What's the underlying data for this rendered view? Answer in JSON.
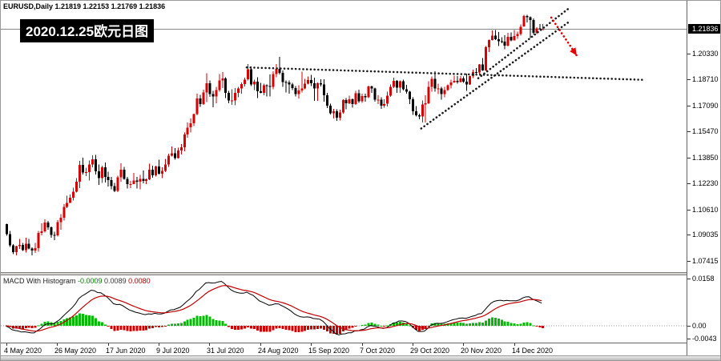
{
  "header": {
    "symbol_info": "EURUSD,Daily 1.21819 1.22153 1.21769 1.21836",
    "title_overlay": "2020.12.25欧元日图"
  },
  "colors": {
    "bull": "#d80000",
    "bear": "#000000",
    "histogram": "#00bb00",
    "hist_negative": "#cc0000",
    "macd_line": "#000000",
    "signal_line": "#c00000",
    "trendline": "#1a1a1a",
    "arrow": "#e60000",
    "bid_line": "#888888",
    "badge_bg": "#000000"
  },
  "macd_panel": {
    "label": "MACD With Histogram",
    "values": [
      "-0.0009",
      "0.0089",
      "0.0080"
    ],
    "value_colors": [
      "#007700",
      "#333333",
      "#aa0000"
    ]
  },
  "chart_data": [
    {
      "type": "candlestick",
      "symbol": "EURUSD",
      "timeframe": "Daily",
      "ohlc_display": {
        "open": "1.21819",
        "high": "1.22153",
        "low": "1.21769",
        "close": "1.21836"
      },
      "start_date": "2020-05-04",
      "frequency": "weekdays",
      "ylim": [
        1.069,
        1.232
      ],
      "grid": false,
      "current_price": 1.21836,
      "current_price_label": "1.21836",
      "y_axis_labels": [
        "1.20330",
        "1.18710",
        "1.17090",
        "1.15470",
        "1.13850",
        "1.12230",
        "1.10610",
        "1.09035",
        "1.07415"
      ],
      "x_axis_labels": [
        {
          "label": "4 May 2020",
          "bar": 0
        },
        {
          "label": "26 May 2020",
          "bar": 16
        },
        {
          "label": "17 Jun 2020",
          "bar": 32
        },
        {
          "label": "9 Jul 2020",
          "bar": 48
        },
        {
          "label": "31 Jul 2020",
          "bar": 64
        },
        {
          "label": "24 Aug 2020",
          "bar": 80
        },
        {
          "label": "15 Sep 2020",
          "bar": 96
        },
        {
          "label": "7 Oct 2020",
          "bar": 112
        },
        {
          "label": "29 Oct 2020",
          "bar": 128
        },
        {
          "label": "20 Nov 2020",
          "bar": 144
        },
        {
          "label": "14 Dec 2020",
          "bar": 160
        }
      ],
      "annotations": [
        {
          "type": "trendline",
          "style": "dotted",
          "color": "black",
          "from": {
            "bar": 76,
            "price": 1.1945
          },
          "to": {
            "bar": 201,
            "price": 1.1868
          }
        },
        {
          "type": "trendline",
          "style": "dotted",
          "color": "black",
          "from": {
            "bar": 131,
            "price": 1.1565
          },
          "to": {
            "bar": 178,
            "price": 1.2235
          }
        },
        {
          "type": "trendline",
          "style": "dotted",
          "color": "black",
          "from": {
            "bar": 149,
            "price": 1.1878
          },
          "to": {
            "bar": 178,
            "price": 1.232
          }
        },
        {
          "type": "arrow",
          "style": "dotted",
          "color": "red",
          "from": {
            "bar": 172,
            "price": 1.2255
          },
          "to": {
            "bar": 180,
            "price": 1.202
          }
        }
      ],
      "ohlc": [
        [
          1.0968,
          1.0972,
          1.0896,
          1.0906
        ],
        [
          1.0906,
          1.0927,
          1.0826,
          1.0838
        ],
        [
          1.0838,
          1.0845,
          1.0782,
          1.0794
        ],
        [
          1.0794,
          1.0834,
          1.0774,
          1.0833
        ],
        [
          1.0833,
          1.0876,
          1.0815,
          1.0839
        ],
        [
          1.0839,
          1.0851,
          1.0801,
          1.0807
        ],
        [
          1.0807,
          1.0885,
          1.0792,
          1.0848
        ],
        [
          1.0848,
          1.0876,
          1.0811,
          1.0818
        ],
        [
          1.0818,
          1.0824,
          1.0775,
          1.0805
        ],
        [
          1.0805,
          1.0851,
          1.0789,
          1.082
        ],
        [
          1.082,
          1.0927,
          1.0797,
          1.0915
        ],
        [
          1.0915,
          1.0975,
          1.0899,
          1.0924
        ],
        [
          1.0924,
          1.0999,
          1.0918,
          1.0979
        ],
        [
          1.0979,
          1.099,
          1.0935,
          1.0949
        ],
        [
          1.0949,
          1.0955,
          1.0885,
          1.0901
        ],
        [
          1.0901,
          1.0923,
          1.087,
          1.0899
        ],
        [
          1.0899,
          1.0995,
          1.0891,
          1.0982
        ],
        [
          1.0982,
          1.1031,
          1.0934,
          1.1008
        ],
        [
          1.1008,
          1.1093,
          1.0992,
          1.1076
        ],
        [
          1.1076,
          1.1145,
          1.1069,
          1.1101
        ],
        [
          1.1101,
          1.1154,
          1.1101,
          1.1134
        ],
        [
          1.1134,
          1.1195,
          1.1115,
          1.117
        ],
        [
          1.117,
          1.1257,
          1.1167,
          1.1233
        ],
        [
          1.1233,
          1.1362,
          1.1194,
          1.1337
        ],
        [
          1.1337,
          1.1383,
          1.1278,
          1.1291
        ],
        [
          1.1291,
          1.132,
          1.1268,
          1.1294
        ],
        [
          1.1294,
          1.1366,
          1.124,
          1.134
        ],
        [
          1.134,
          1.1398,
          1.1322,
          1.1374
        ],
        [
          1.1374,
          1.14,
          1.1277,
          1.1298
        ],
        [
          1.1298,
          1.134,
          1.1213,
          1.1256
        ],
        [
          1.1256,
          1.1333,
          1.1227,
          1.1324
        ],
        [
          1.1324,
          1.1353,
          1.1228,
          1.1263
        ],
        [
          1.1263,
          1.1296,
          1.1204,
          1.1244
        ],
        [
          1.1244,
          1.1262,
          1.1185,
          1.1205
        ],
        [
          1.1205,
          1.1226,
          1.1168,
          1.1177
        ],
        [
          1.1177,
          1.1271,
          1.1168,
          1.1261
        ],
        [
          1.1261,
          1.1349,
          1.1233,
          1.1308
        ],
        [
          1.1308,
          1.1326,
          1.1245,
          1.1251
        ],
        [
          1.1251,
          1.1262,
          1.119,
          1.1218
        ],
        [
          1.1218,
          1.1239,
          1.1194,
          1.1219
        ],
        [
          1.1219,
          1.1288,
          1.1219,
          1.1242
        ],
        [
          1.1242,
          1.1262,
          1.1191,
          1.1234
        ],
        [
          1.1234,
          1.1276,
          1.1185,
          1.1251
        ],
        [
          1.1251,
          1.1303,
          1.1223,
          1.1239
        ],
        [
          1.1239,
          1.1254,
          1.1219,
          1.1248
        ],
        [
          1.1248,
          1.1346,
          1.1243,
          1.1309
        ],
        [
          1.1309,
          1.1333,
          1.1259,
          1.1274
        ],
        [
          1.1274,
          1.1334,
          1.1266,
          1.1328
        ],
        [
          1.1328,
          1.1371,
          1.1277,
          1.1284
        ],
        [
          1.1284,
          1.1324,
          1.1255,
          1.13
        ],
        [
          1.13,
          1.1375,
          1.1293,
          1.1341
        ],
        [
          1.1341,
          1.1409,
          1.1325,
          1.1396
        ],
        [
          1.1396,
          1.1452,
          1.139,
          1.141
        ],
        [
          1.141,
          1.1442,
          1.137,
          1.1381
        ],
        [
          1.1381,
          1.1444,
          1.1377,
          1.1427
        ],
        [
          1.1427,
          1.1468,
          1.1402,
          1.1447
        ],
        [
          1.1447,
          1.1539,
          1.1422,
          1.1527
        ],
        [
          1.1527,
          1.1601,
          1.1507,
          1.1571
        ],
        [
          1.1571,
          1.1628,
          1.154,
          1.1596
        ],
        [
          1.1596,
          1.1658,
          1.1581,
          1.1655
        ],
        [
          1.1655,
          1.1781,
          1.1648,
          1.1752
        ],
        [
          1.1752,
          1.1773,
          1.17,
          1.1716
        ],
        [
          1.1716,
          1.1807,
          1.1712,
          1.179
        ],
        [
          1.179,
          1.1909,
          1.173,
          1.1847
        ],
        [
          1.1847,
          1.1863,
          1.1762,
          1.1778
        ],
        [
          1.1778,
          1.1798,
          1.1696,
          1.1763
        ],
        [
          1.1763,
          1.1824,
          1.1723,
          1.1803
        ],
        [
          1.1803,
          1.1905,
          1.1793,
          1.1863
        ],
        [
          1.1863,
          1.1916,
          1.1817,
          1.1876
        ],
        [
          1.1876,
          1.1884,
          1.1754,
          1.1787
        ],
        [
          1.1787,
          1.1798,
          1.1722,
          1.1738
        ],
        [
          1.1738,
          1.1808,
          1.1711,
          1.1739
        ],
        [
          1.1739,
          1.1816,
          1.171,
          1.1786
        ],
        [
          1.1786,
          1.1823,
          1.1758,
          1.1813
        ],
        [
          1.1813,
          1.1851,
          1.1782,
          1.1842
        ],
        [
          1.1842,
          1.1882,
          1.1826,
          1.187
        ],
        [
          1.187,
          1.1966,
          1.1863,
          1.1934
        ],
        [
          1.1934,
          1.1952,
          1.183,
          1.1839
        ],
        [
          1.1839,
          1.1869,
          1.1805,
          1.1857
        ],
        [
          1.1857,
          1.1884,
          1.1754,
          1.1797
        ],
        [
          1.1797,
          1.1848,
          1.1783,
          1.1786
        ],
        [
          1.1786,
          1.1843,
          1.1772,
          1.1833
        ],
        [
          1.1833,
          1.1838,
          1.1763,
          1.183
        ],
        [
          1.183,
          1.1902,
          1.1763,
          1.1823
        ],
        [
          1.1823,
          1.192,
          1.181,
          1.1903
        ],
        [
          1.1903,
          1.1967,
          1.1883,
          1.1936
        ],
        [
          1.1936,
          1.2011,
          1.1901,
          1.1911
        ],
        [
          1.1911,
          1.1927,
          1.1823,
          1.1855
        ],
        [
          1.1855,
          1.1865,
          1.1789,
          1.1852
        ],
        [
          1.1852,
          1.1864,
          1.1781,
          1.1838
        ],
        [
          1.1838,
          1.1849,
          1.1805,
          1.1817
        ],
        [
          1.1817,
          1.1828,
          1.1765,
          1.1778
        ],
        [
          1.1778,
          1.1834,
          1.1752,
          1.1801
        ],
        [
          1.1801,
          1.1918,
          1.1788,
          1.1814
        ],
        [
          1.1814,
          1.1874,
          1.1808,
          1.1844
        ],
        [
          1.1844,
          1.1888,
          1.1839,
          1.1867
        ],
        [
          1.1867,
          1.19,
          1.1829,
          1.1846
        ],
        [
          1.1846,
          1.1882,
          1.1738,
          1.1815
        ],
        [
          1.1815,
          1.1852,
          1.1737,
          1.1847
        ],
        [
          1.1847,
          1.1872,
          1.1827,
          1.184
        ],
        [
          1.184,
          1.1872,
          1.1732,
          1.1771
        ],
        [
          1.1771,
          1.1787,
          1.1692,
          1.1707
        ],
        [
          1.1707,
          1.1719,
          1.1651,
          1.166
        ],
        [
          1.166,
          1.1686,
          1.1626,
          1.1672
        ],
        [
          1.1672,
          1.1685,
          1.1612,
          1.1631
        ],
        [
          1.1631,
          1.1683,
          1.1615,
          1.1665
        ],
        [
          1.1665,
          1.1746,
          1.1657,
          1.1742
        ],
        [
          1.1742,
          1.1755,
          1.1684,
          1.1722
        ],
        [
          1.1722,
          1.1769,
          1.1717,
          1.1748
        ],
        [
          1.1748,
          1.1752,
          1.1695,
          1.1716
        ],
        [
          1.1716,
          1.1798,
          1.1711,
          1.1784
        ],
        [
          1.1784,
          1.1807,
          1.1725,
          1.1733
        ],
        [
          1.1733,
          1.1781,
          1.1725,
          1.1766
        ],
        [
          1.1766,
          1.1782,
          1.1733,
          1.176
        ],
        [
          1.176,
          1.1831,
          1.1754,
          1.1826
        ],
        [
          1.1826,
          1.1832,
          1.1786,
          1.1813
        ],
        [
          1.1813,
          1.1818,
          1.1731,
          1.1744
        ],
        [
          1.1744,
          1.1772,
          1.1718,
          1.1745
        ],
        [
          1.1745,
          1.1758,
          1.1688,
          1.1708
        ],
        [
          1.1708,
          1.1747,
          1.1694,
          1.1718
        ],
        [
          1.1718,
          1.1794,
          1.1703,
          1.177
        ],
        [
          1.177,
          1.184,
          1.1761,
          1.1824
        ],
        [
          1.1824,
          1.1881,
          1.1817,
          1.1862
        ],
        [
          1.1862,
          1.1866,
          1.1786,
          1.1818
        ],
        [
          1.1818,
          1.1863,
          1.1787,
          1.186
        ],
        [
          1.186,
          1.187,
          1.1802,
          1.181
        ],
        [
          1.181,
          1.1837,
          1.1781,
          1.1794
        ],
        [
          1.1794,
          1.18,
          1.1718,
          1.1746
        ],
        [
          1.1746,
          1.1759,
          1.165,
          1.1673
        ],
        [
          1.1673,
          1.1704,
          1.164,
          1.1647
        ],
        [
          1.1647,
          1.1656,
          1.1623,
          1.164
        ],
        [
          1.164,
          1.174,
          1.1603,
          1.1714
        ],
        [
          1.1714,
          1.1771,
          1.1602,
          1.1723
        ],
        [
          1.1723,
          1.186,
          1.1716,
          1.1825
        ],
        [
          1.1825,
          1.189,
          1.1795,
          1.1874
        ],
        [
          1.1874,
          1.192,
          1.1795,
          1.1813
        ],
        [
          1.1813,
          1.1843,
          1.178,
          1.1814
        ],
        [
          1.1814,
          1.1824,
          1.1745,
          1.1779
        ],
        [
          1.1779,
          1.1823,
          1.1758,
          1.1804
        ],
        [
          1.1804,
          1.184,
          1.1799,
          1.1834
        ],
        [
          1.1834,
          1.1869,
          1.1814,
          1.1852
        ],
        [
          1.1852,
          1.1894,
          1.1849,
          1.1862
        ],
        [
          1.1862,
          1.1891,
          1.1845,
          1.1854
        ],
        [
          1.1854,
          1.1892,
          1.1851,
          1.1876
        ],
        [
          1.1876,
          1.189,
          1.1848,
          1.1857
        ],
        [
          1.1857,
          1.1906,
          1.18,
          1.184
        ],
        [
          1.184,
          1.1895,
          1.1836,
          1.1891
        ],
        [
          1.1891,
          1.193,
          1.188,
          1.1915
        ],
        [
          1.1915,
          1.1941,
          1.1899,
          1.1913
        ],
        [
          1.1913,
          1.1965,
          1.1904,
          1.1963
        ],
        [
          1.1963,
          1.2003,
          1.1923,
          1.1926
        ],
        [
          1.1926,
          1.2077,
          1.1923,
          1.2071
        ],
        [
          1.2071,
          1.2118,
          1.204,
          1.2115
        ],
        [
          1.2115,
          1.2175,
          1.2114,
          1.2142
        ],
        [
          1.2142,
          1.2177,
          1.2115,
          1.2121
        ],
        [
          1.2121,
          1.2166,
          1.2079,
          1.2108
        ],
        [
          1.2108,
          1.2134,
          1.2095,
          1.2106
        ],
        [
          1.2106,
          1.2146,
          1.2059,
          1.208
        ],
        [
          1.208,
          1.216,
          1.2076,
          1.2135
        ],
        [
          1.2135,
          1.2163,
          1.2109,
          1.2113
        ],
        [
          1.2113,
          1.2178,
          1.2113,
          1.2141
        ],
        [
          1.2141,
          1.2169,
          1.2123,
          1.2152
        ],
        [
          1.2152,
          1.2212,
          1.2144,
          1.2199
        ],
        [
          1.2199,
          1.2273,
          1.2197,
          1.2265
        ],
        [
          1.2265,
          1.2272,
          1.2225,
          1.2257
        ],
        [
          1.2257,
          1.2262,
          1.2129,
          1.224
        ],
        [
          1.224,
          1.225,
          1.2151,
          1.2161
        ],
        [
          1.2161,
          1.2196,
          1.2154,
          1.2189
        ],
        [
          1.2189,
          1.2216,
          1.2181,
          1.2187
        ],
        [
          1.21819,
          1.22153,
          1.21769,
          1.21836
        ]
      ]
    },
    {
      "type": "macd",
      "label": "MACD With Histogram",
      "displayed_values": [
        "-0.0009",
        "0.0089",
        "0.0080"
      ],
      "params": {
        "fast_ema": 12,
        "slow_ema": 26,
        "signal_ema": 9
      },
      "derived_from": "closes of chart_data[0]",
      "y_axis_labels": [
        "0.0158",
        "0.00",
        "-0.0043"
      ],
      "ylim": [
        -0.0048,
        0.0168
      ],
      "legend_position": "top-left"
    }
  ]
}
